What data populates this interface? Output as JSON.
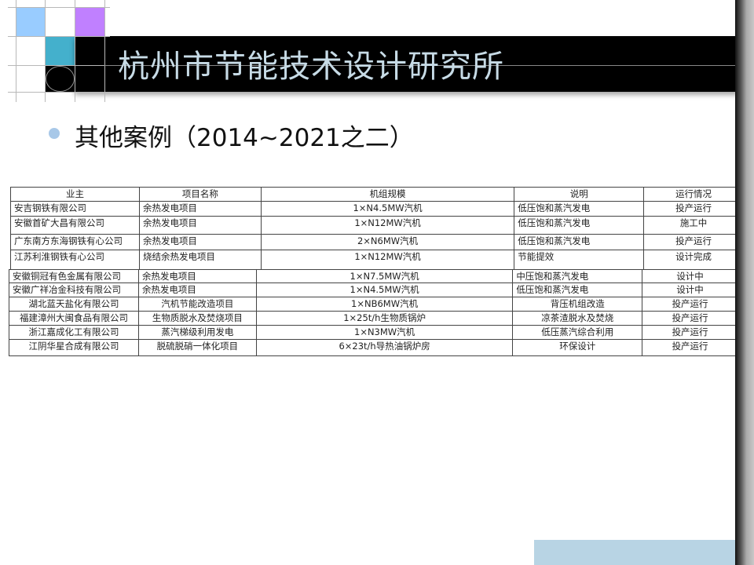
{
  "slide": {
    "title": "杭州市节能技术设计研究所",
    "subtitle": "其他案例（2014~2021之二）",
    "colors": {
      "title_bar": "#000000",
      "title_text": "#c7dbe6",
      "square_light_blue": "#99ccff",
      "square_purple": "#c080ff",
      "square_teal": "#44b0cc",
      "bullet": "#a8c8e8",
      "footer_bar": "#b8d4e4"
    }
  },
  "table1": {
    "headers": [
      "业主",
      "项目名称",
      "机组规模",
      "说明",
      "运行情况"
    ],
    "rows": [
      [
        "安吉钢铁有限公司",
        "余热发电项目",
        "1×N4.5MW汽机",
        "低压饱和蒸汽发电",
        "投产运行"
      ],
      [
        "安徽首矿大昌有限公司",
        "余热发电项目",
        "1×N12MW汽机",
        "低压饱和蒸汽发电",
        "施工中"
      ],
      [
        "广东南方东海钢铁有心公司",
        "余热发电项目",
        "2×N6MW汽机",
        "低压饱和蒸汽发电",
        "投产运行"
      ],
      [
        "江苏利淮钢铁有心公司",
        "烧结余热发电项目",
        "1×N12MW汽机",
        "节能提效",
        "设计完成"
      ]
    ]
  },
  "table2": {
    "rows": [
      [
        "安徽铜冠有色金属有限公司",
        "余热发电项目",
        "1×N7.5MW汽机",
        "中压饱和蒸汽发电",
        "设计中"
      ],
      [
        "安徽广祥冶金科技有限公司",
        "余热发电项目",
        "1×N4.5MW汽机",
        "低压饱和蒸汽发电",
        "设计中"
      ],
      [
        "湖北蓝天盐化有限公司",
        "汽机节能改造项目",
        "1×NB6MW汽机",
        "背压机组改造",
        "投产运行"
      ],
      [
        "福建漳州大闽食品有限公司",
        "生物质脱水及焚烧项目",
        "1×25t/h生物质锅炉",
        "凉茶渣脱水及焚烧",
        "投产运行"
      ],
      [
        "浙江嘉成化工有限公司",
        "蒸汽梯级利用发电",
        "1×N3MW汽机",
        "低压蒸汽综合利用",
        "投产运行"
      ],
      [
        "江阴华星合成有限公司",
        "脱硫脱硝一体化项目",
        "6×23t/h导热油锅炉房",
        "环保设计",
        "投产运行"
      ]
    ]
  }
}
